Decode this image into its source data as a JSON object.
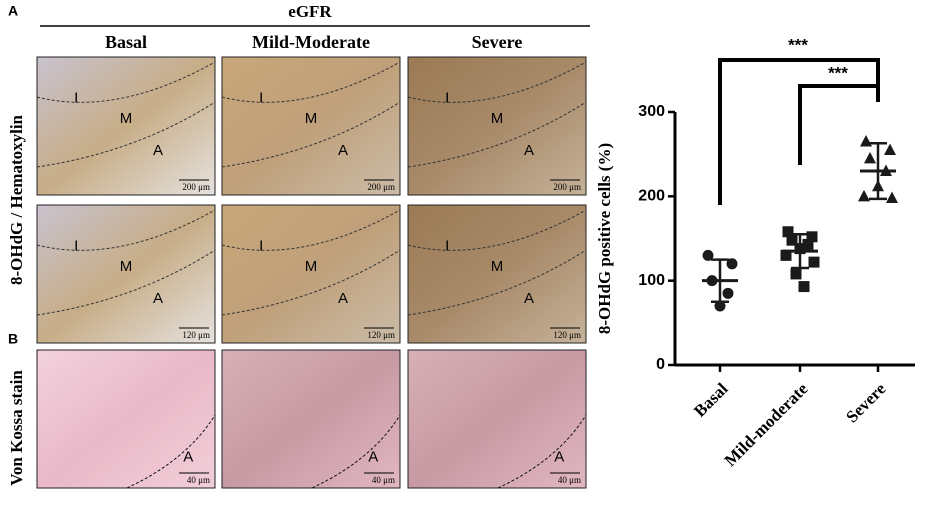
{
  "figure": {
    "panel_labels": [
      "A",
      "B"
    ],
    "group_header": "eGFR",
    "columns": [
      "Basal",
      "Mild-Moderate",
      "Severe"
    ],
    "rows": [
      "8-OHdG / Hematoxylin",
      "Von Kossa stain"
    ],
    "micrographs": [
      [
        {
          "labels": [
            "I",
            "M",
            "A"
          ],
          "scale_bar": "200 μm"
        },
        {
          "labels": [
            "I",
            "M",
            "A"
          ],
          "scale_bar": "200 μm"
        },
        {
          "labels": [
            "I",
            "M",
            "A"
          ],
          "scale_bar": "200 μm"
        }
      ],
      [
        {
          "labels": [
            "I",
            "M",
            "A"
          ],
          "scale_bar": "120 μm"
        },
        {
          "labels": [
            "I",
            "M",
            "A"
          ],
          "scale_bar": "120 μm"
        },
        {
          "labels": [
            "I",
            "M",
            "A"
          ],
          "scale_bar": "120 μm"
        }
      ],
      [
        {
          "labels": [
            "A"
          ],
          "scale_bar": "40 μm"
        },
        {
          "labels": [
            "A"
          ],
          "scale_bar": "40 μm"
        },
        {
          "labels": [
            "A"
          ],
          "scale_bar": "40 μm"
        }
      ]
    ]
  },
  "chart_data": {
    "type": "scatter",
    "categories": [
      "Basal",
      "Mild-moderate",
      "Severe"
    ],
    "points": [
      [
        130,
        120,
        100,
        85,
        70
      ],
      [
        158,
        152,
        148,
        143,
        138,
        130,
        122,
        108,
        93
      ],
      [
        265,
        255,
        245,
        230,
        212,
        200,
        198
      ]
    ],
    "mean": [
      100,
      135,
      230
    ],
    "sd": [
      25,
      20,
      33
    ],
    "markers": [
      "circle",
      "square",
      "triangle"
    ],
    "color": "#1a1a1a",
    "ylabel": "8-OHdG positive cells (%)",
    "ylim": [
      0,
      300
    ],
    "yticks": [
      0,
      100,
      200,
      300
    ],
    "annotations": [
      "***",
      "***"
    ]
  }
}
